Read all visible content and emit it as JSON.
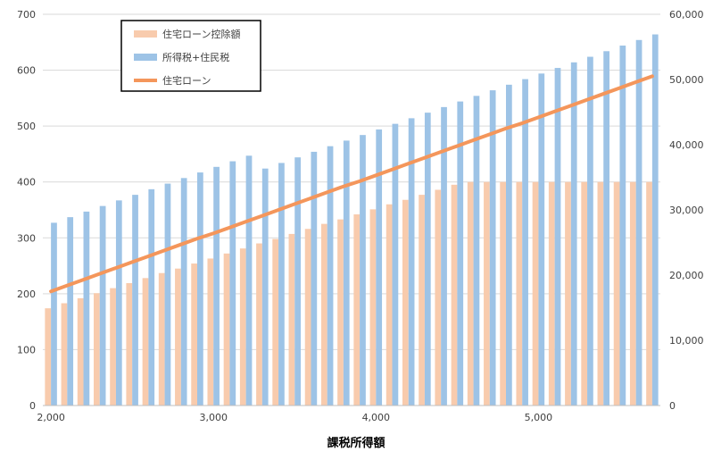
{
  "chart_data": {
    "type": "bar",
    "xlabel": "課税所得額",
    "x_ticks": [
      "2,000",
      "3,000",
      "4,000",
      "5,000"
    ],
    "y_left_ticks": [
      "0",
      "100",
      "200",
      "300",
      "400",
      "500",
      "600",
      "700"
    ],
    "y_right_ticks": [
      "0",
      "10,000",
      "20,000",
      "30,000",
      "40,000",
      "50,000",
      "60,000"
    ],
    "ylim_left": [
      0,
      700
    ],
    "ylim_right": [
      0,
      60000
    ],
    "legend_position": "top-left",
    "grid": true,
    "x": [
      2000,
      2100,
      2200,
      2300,
      2400,
      2500,
      2600,
      2700,
      2800,
      2900,
      3000,
      3100,
      3200,
      3300,
      3400,
      3500,
      3600,
      3700,
      3800,
      3900,
      4000,
      4100,
      4200,
      4300,
      4400,
      4500,
      4600,
      4700,
      4800,
      4900,
      5000,
      5100,
      5200,
      5300,
      5400,
      5500,
      5600,
      5700
    ],
    "series": [
      {
        "name": "住宅ローン控除額",
        "type": "bar",
        "axis": "left",
        "color": "#f8cbad",
        "values": [
          174,
          183,
          192,
          201,
          210,
          219,
          228,
          237,
          245,
          254,
          263,
          272,
          281,
          290,
          298,
          307,
          316,
          325,
          333,
          342,
          351,
          360,
          368,
          377,
          386,
          395,
          400,
          400,
          400,
          400,
          400,
          400,
          400,
          400,
          400,
          400,
          400,
          400
        ]
      },
      {
        "name": "所得税+住民税",
        "type": "bar",
        "axis": "left",
        "color": "#9dc3e6",
        "values": [
          327,
          337,
          347,
          357,
          367,
          377,
          387,
          397,
          407,
          417,
          427,
          437,
          447,
          424,
          434,
          444,
          454,
          464,
          474,
          484,
          494,
          504,
          514,
          524,
          534,
          544,
          554,
          564,
          574,
          584,
          594,
          604,
          614,
          624,
          634,
          644,
          654,
          664
        ]
      },
      {
        "name": "住宅ローン",
        "type": "line",
        "axis": "right",
        "color": "#f4965b",
        "values": [
          17500,
          18400,
          19300,
          20200,
          21100,
          22000,
          22900,
          23800,
          24700,
          25600,
          26400,
          27300,
          28200,
          29100,
          30000,
          30900,
          31800,
          32700,
          33600,
          34400,
          35300,
          36200,
          37100,
          38000,
          38900,
          39800,
          40700,
          41600,
          42500,
          43300,
          44200,
          45100,
          46000,
          46900,
          47800,
          48700,
          49600,
          50500
        ]
      }
    ]
  }
}
